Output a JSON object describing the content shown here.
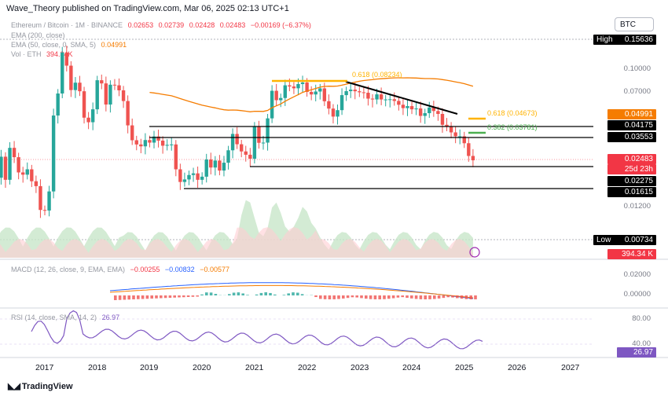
{
  "header": {
    "publisher": "Wave_Theory published on TradingView.com, Mar 06, 2025 02:13 UTC+1",
    "symbol_button": "BTC"
  },
  "legend": {
    "title": "Ethereum / Bitcoin · 1M · BINANCE",
    "ohlc": [
      "0.02653",
      "0.02739",
      "0.02428",
      "0.02483"
    ],
    "change": "−0.00169 (−6.37%)",
    "ema200": "EMA (200, close)",
    "ema50": "EMA (50, close, 0, SMA, 5)",
    "ema50_value": "0.04991",
    "vol": "Vol · ETH",
    "vol_value": "394.34K"
  },
  "price_axis": {
    "high_label": "High",
    "high_value": "0.15636",
    "low_label": "Low",
    "low_value": "0.00734",
    "ticks": [
      "0.10000",
      "0.07000",
      "0.01200"
    ],
    "tags": [
      {
        "text": "0.04991",
        "bg": "#f57c00",
        "fg": "#ffffff"
      },
      {
        "text": "0.04175",
        "bg": "#000000",
        "fg": "#ffffff"
      },
      {
        "text": "0.03553",
        "bg": "#000000",
        "fg": "#ffffff"
      },
      {
        "text": "0.02483",
        "bg": "#f23645",
        "fg": "#ffffff"
      },
      {
        "text": "25d 23h",
        "bg": "#f23645",
        "fg": "#ffffff"
      },
      {
        "text": "0.02275",
        "bg": "#000000",
        "fg": "#ffffff"
      },
      {
        "text": "0.01615",
        "bg": "#000000",
        "fg": "#ffffff"
      },
      {
        "text": "394.34 K",
        "bg": "#f23645",
        "fg": "#ffffff"
      }
    ]
  },
  "fib_labels": {
    "fib_top": "0.618 (0.08234)",
    "fib_618": "0.618 (0.04673)",
    "fib_382": "0.382 (0.03781)"
  },
  "macd": {
    "label": "MACD (12, 26, close, 9, EMA, EMA)",
    "values": [
      "−0.00255",
      "−0.00832",
      "−0.00577"
    ],
    "ticks": [
      "0.02000",
      "0.00000"
    ]
  },
  "rsi": {
    "label": "RSI (14, close, SMA, 14, 2)",
    "value": "26.97",
    "ticks": [
      "80.00",
      "40.00"
    ]
  },
  "time_axis": [
    "2017",
    "2018",
    "2019",
    "2020",
    "2021",
    "2022",
    "2023",
    "2024",
    "2025",
    "2026",
    "2027"
  ],
  "branding": "TradingView",
  "colors": {
    "up": "#26a69a",
    "down": "#ef5350",
    "ema": "#f57c00",
    "fib": "#ffb300",
    "macd": "#2962ff",
    "rsi": "#7e57c2"
  },
  "chart_data": {
    "type": "candlestick",
    "symbol": "ETH/BTC",
    "interval": "1M",
    "last_price": 0.02483,
    "support_resistance": [
      0.04175,
      0.03553,
      0.02275,
      0.01615
    ],
    "fibonacci": [
      0.08234,
      0.04673,
      0.03781
    ],
    "all_time_high": 0.15636,
    "all_time_low": 0.00734,
    "ema50": 0.04991,
    "volume_last": "394.34K",
    "macd_last": [
      -0.00255,
      -0.00832,
      -0.00577
    ],
    "rsi_last": 26.97
  }
}
